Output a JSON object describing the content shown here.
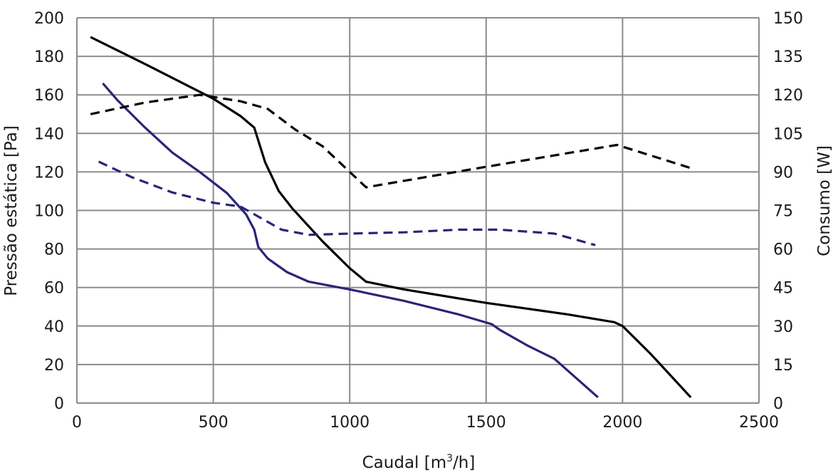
{
  "chart_data": {
    "type": "line",
    "title": "",
    "xlabel": "Caudal [m3/h]",
    "xlabel_main": "Caudal [m",
    "xlabel_sup": "3",
    "xlabel_end": "/h]",
    "ylabel": "Pressão estática [Pa]",
    "y2label": "Consumo [W]",
    "xlim": [
      0,
      2500
    ],
    "ylim": [
      0,
      200
    ],
    "y2lim": [
      0,
      150
    ],
    "x_ticks": [
      "0",
      "500",
      "1000",
      "1500",
      "2000",
      "2500"
    ],
    "y_ticks": [
      "0",
      "20",
      "40",
      "60",
      "80",
      "100",
      "120",
      "140",
      "160",
      "180",
      "200"
    ],
    "y2_ticks": [
      "0",
      "15",
      "30",
      "45",
      "60",
      "75",
      "90",
      "105",
      "120",
      "135",
      "150"
    ],
    "grid": true,
    "legend": "none",
    "series": [
      {
        "axis": "left",
        "color": "#000000",
        "dash": "solid",
        "points": [
          [
            50,
            190
          ],
          [
            250,
            176
          ],
          [
            500,
            158
          ],
          [
            600,
            149
          ],
          [
            650,
            143
          ],
          [
            690,
            125
          ],
          [
            740,
            110
          ],
          [
            790,
            101
          ],
          [
            900,
            84
          ],
          [
            1000,
            70
          ],
          [
            1060,
            63
          ],
          [
            1200,
            59
          ],
          [
            1500,
            52
          ],
          [
            1800,
            46
          ],
          [
            1970,
            42
          ],
          [
            2000,
            40
          ],
          [
            2100,
            26
          ],
          [
            2250,
            3
          ]
        ]
      },
      {
        "axis": "left",
        "color": "#2b2478",
        "dash": "solid",
        "points": [
          [
            95,
            166
          ],
          [
            150,
            157
          ],
          [
            250,
            143
          ],
          [
            350,
            130
          ],
          [
            450,
            120
          ],
          [
            550,
            109
          ],
          [
            620,
            98
          ],
          [
            650,
            90
          ],
          [
            665,
            81
          ],
          [
            700,
            75
          ],
          [
            770,
            68
          ],
          [
            850,
            63
          ],
          [
            1000,
            59
          ],
          [
            1200,
            53
          ],
          [
            1400,
            46
          ],
          [
            1520,
            41
          ],
          [
            1550,
            38
          ],
          [
            1650,
            30
          ],
          [
            1750,
            23
          ],
          [
            1910,
            3
          ]
        ]
      },
      {
        "axis": "right",
        "color": "#000000",
        "dash": "dashed",
        "points": [
          [
            50,
            112.5
          ],
          [
            250,
            117
          ],
          [
            450,
            120
          ],
          [
            600,
            117.5
          ],
          [
            700,
            114.5
          ],
          [
            800,
            106.5
          ],
          [
            900,
            100
          ],
          [
            1000,
            90
          ],
          [
            1060,
            84
          ],
          [
            1500,
            92
          ],
          [
            1980,
            100.5
          ],
          [
            2250,
            91.5
          ]
        ]
      },
      {
        "axis": "right",
        "color": "#2b2478",
        "dash": "dashed",
        "points": [
          [
            80,
            94
          ],
          [
            200,
            88
          ],
          [
            350,
            82
          ],
          [
            500,
            78
          ],
          [
            600,
            76.5
          ],
          [
            650,
            73.5
          ],
          [
            750,
            67.5
          ],
          [
            850,
            65.5
          ],
          [
            1000,
            66
          ],
          [
            1200,
            66.5
          ],
          [
            1400,
            67.5
          ],
          [
            1550,
            67.5
          ],
          [
            1750,
            66
          ],
          [
            1900,
            61.5
          ]
        ]
      }
    ]
  }
}
